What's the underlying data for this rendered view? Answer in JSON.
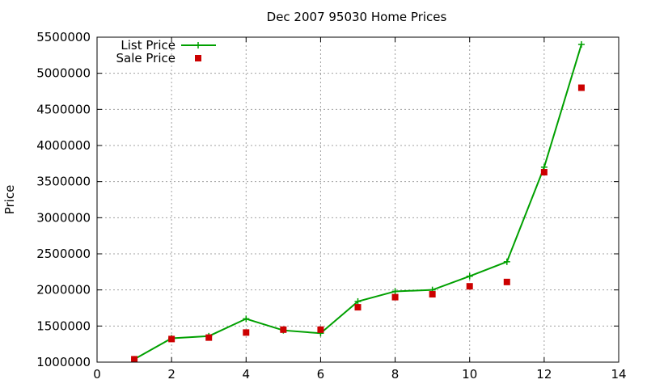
{
  "chart_data": {
    "type": "line",
    "title": "Dec 2007 95030 Home Prices",
    "xlabel": "",
    "ylabel": "Price",
    "xlim": [
      0,
      14
    ],
    "ylim": [
      1000000,
      5500000
    ],
    "x_ticks": [
      "0",
      "2",
      "4",
      "6",
      "8",
      "10",
      "12",
      "14"
    ],
    "y_ticks": [
      "1000000",
      "1500000",
      "2000000",
      "2500000",
      "3000000",
      "3500000",
      "4000000",
      "4500000",
      "5000000",
      "5500000"
    ],
    "grid": true,
    "legend_position": "top-left",
    "series": [
      {
        "name": "List Price",
        "style": "line+cross",
        "color": "#00a000",
        "x": [
          1,
          2,
          3,
          4,
          5,
          6,
          7,
          8,
          9,
          10,
          11,
          12,
          13
        ],
        "values": [
          1040000,
          1330000,
          1360000,
          1600000,
          1440000,
          1400000,
          1840000,
          1980000,
          2000000,
          2190000,
          2390000,
          3700000,
          5400000
        ]
      },
      {
        "name": "Sale Price",
        "style": "square-points",
        "color": "#cc0000",
        "x": [
          1,
          2,
          3,
          4,
          5,
          6,
          7,
          8,
          9,
          10,
          11,
          12,
          13
        ],
        "values": [
          1040000,
          1320000,
          1340000,
          1410000,
          1450000,
          1450000,
          1760000,
          1900000,
          1940000,
          2050000,
          2110000,
          3630000,
          4800000
        ]
      }
    ]
  }
}
